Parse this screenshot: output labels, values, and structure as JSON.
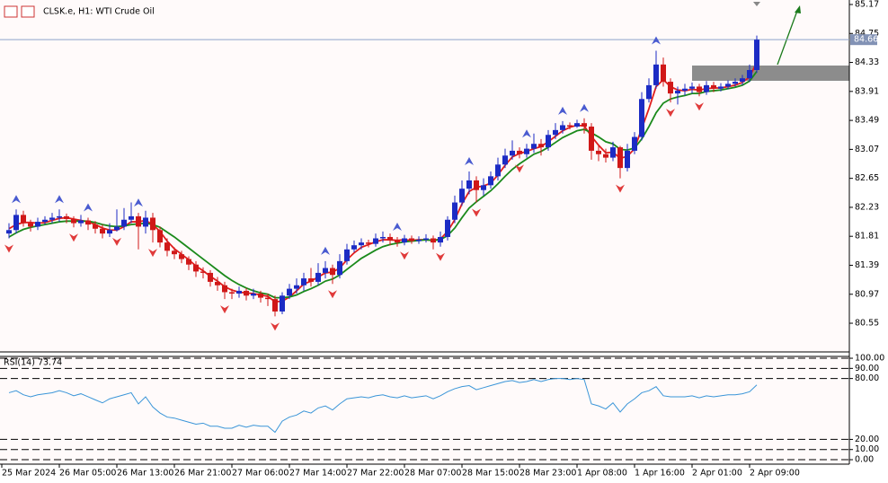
{
  "chart_data": [
    {
      "type": "candlestick",
      "title": "CLSK.e, H1:  WTI Crude Oil",
      "up_color": "#1c2bc4",
      "down_color": "#d01818",
      "open": [
        81.85,
        81.9,
        82.12,
        82.0,
        81.95,
        82.02,
        82.05,
        82.08,
        82.1,
        82.06,
        82.0,
        82.04,
        81.98,
        81.92,
        81.85,
        81.9,
        81.95,
        82.05,
        82.1,
        81.95,
        82.08,
        81.9,
        81.72,
        81.6,
        81.55,
        81.48,
        81.4,
        81.3,
        81.28,
        81.15,
        81.1,
        81.0,
        80.98,
        81.02,
        80.95,
        80.98,
        80.92,
        80.9,
        80.72,
        80.95,
        81.05,
        81.1,
        81.2,
        81.15,
        81.28,
        81.35,
        81.25,
        81.45,
        81.62,
        81.68,
        81.72,
        81.7,
        81.78,
        81.8,
        81.75,
        81.72,
        81.78,
        81.74,
        81.76,
        81.78,
        81.72,
        81.8,
        82.05,
        82.3,
        82.5,
        82.62,
        82.48,
        82.55,
        82.68,
        82.85,
        82.98,
        83.05,
        83.0,
        83.08,
        83.15,
        83.1,
        83.28,
        83.35,
        83.42,
        83.4,
        83.45,
        83.4,
        83.05,
        83.0,
        82.95,
        83.1,
        82.8,
        83.05,
        83.25,
        83.8,
        84.0,
        84.3,
        84.05,
        83.88,
        83.92,
        83.95,
        83.98,
        83.9,
        84.0,
        83.95,
        83.98,
        84.02,
        84.05,
        84.1,
        84.22
      ],
      "high": [
        82.0,
        82.2,
        82.18,
        82.05,
        82.08,
        82.1,
        82.15,
        82.2,
        82.14,
        82.1,
        82.12,
        82.08,
        82.03,
        81.98,
        82.0,
        82.2,
        82.22,
        82.3,
        82.15,
        82.18,
        82.15,
        81.95,
        81.78,
        81.65,
        81.6,
        81.52,
        81.45,
        81.36,
        81.32,
        81.22,
        81.15,
        81.05,
        81.08,
        81.06,
        81.05,
        81.02,
        80.98,
        80.95,
        81.0,
        81.12,
        81.2,
        81.28,
        81.35,
        81.42,
        81.45,
        81.4,
        81.55,
        81.7,
        81.75,
        81.78,
        81.76,
        81.85,
        81.88,
        81.85,
        81.8,
        81.83,
        81.82,
        81.81,
        81.84,
        81.82,
        81.88,
        82.1,
        82.4,
        82.62,
        82.75,
        82.68,
        82.65,
        82.75,
        82.95,
        83.08,
        83.2,
        83.1,
        83.15,
        83.3,
        83.22,
        83.35,
        83.45,
        83.48,
        83.46,
        83.5,
        83.52,
        83.45,
        83.12,
        83.08,
        83.18,
        83.12,
        83.15,
        83.32,
        83.9,
        84.1,
        84.5,
        84.4,
        84.1,
        83.98,
        84.02,
        84.04,
        84.02,
        84.06,
        84.05,
        84.03,
        84.07,
        84.1,
        84.15,
        84.3,
        84.72
      ],
      "low": [
        81.78,
        81.85,
        81.95,
        81.88,
        81.9,
        81.98,
        82.0,
        82.02,
        82.0,
        81.94,
        81.95,
        81.9,
        81.85,
        81.78,
        81.8,
        81.88,
        81.9,
        82.0,
        81.62,
        81.85,
        81.72,
        81.65,
        81.52,
        81.48,
        81.42,
        81.32,
        81.22,
        81.2,
        81.08,
        81.02,
        80.9,
        80.9,
        80.92,
        80.88,
        80.9,
        80.85,
        80.8,
        80.65,
        80.68,
        80.9,
        80.98,
        81.02,
        81.08,
        81.1,
        81.2,
        81.12,
        81.2,
        81.4,
        81.58,
        81.62,
        81.65,
        81.66,
        81.72,
        81.68,
        81.66,
        81.68,
        81.7,
        81.7,
        81.72,
        81.62,
        81.66,
        81.75,
        82.0,
        82.25,
        82.42,
        82.3,
        82.4,
        82.5,
        82.62,
        82.8,
        82.92,
        82.94,
        82.95,
        83.02,
        82.98,
        83.05,
        83.22,
        83.3,
        83.36,
        83.38,
        83.3,
        82.92,
        82.9,
        82.88,
        82.9,
        82.65,
        82.75,
        83.0,
        83.2,
        83.75,
        83.95,
        83.98,
        83.75,
        83.72,
        83.85,
        83.88,
        83.84,
        83.86,
        83.9,
        83.91,
        83.94,
        83.98,
        84.0,
        84.05,
        84.18
      ],
      "close": [
        81.9,
        82.12,
        82.0,
        81.95,
        82.02,
        82.05,
        82.08,
        82.1,
        82.06,
        82.0,
        82.04,
        81.98,
        81.92,
        81.85,
        81.9,
        81.95,
        82.05,
        82.1,
        81.95,
        82.08,
        81.9,
        81.72,
        81.6,
        81.55,
        81.48,
        81.4,
        81.3,
        81.28,
        81.15,
        81.1,
        81.0,
        80.98,
        81.02,
        80.95,
        80.98,
        80.92,
        80.9,
        80.72,
        80.95,
        81.05,
        81.1,
        81.2,
        81.15,
        81.28,
        81.35,
        81.25,
        81.45,
        81.62,
        81.68,
        81.72,
        81.7,
        81.78,
        81.8,
        81.75,
        81.72,
        81.78,
        81.74,
        81.76,
        81.78,
        81.72,
        81.8,
        82.05,
        82.3,
        82.5,
        82.62,
        82.48,
        82.55,
        82.68,
        82.85,
        82.98,
        83.05,
        83.0,
        83.08,
        83.15,
        83.1,
        83.28,
        83.35,
        83.42,
        83.4,
        83.45,
        83.4,
        83.05,
        83.0,
        82.95,
        83.1,
        82.8,
        83.05,
        83.25,
        83.8,
        84.0,
        84.3,
        84.05,
        83.88,
        83.92,
        83.95,
        83.98,
        83.9,
        84.0,
        83.95,
        83.98,
        84.02,
        84.05,
        84.1,
        84.22,
        84.66
      ],
      "moving_averages": [
        {
          "color": "#e01e1e",
          "values": [
            81.92,
            81.98,
            82.01,
            82.01,
            82.0,
            82.01,
            82.04,
            82.07,
            82.08,
            82.06,
            82.04,
            82.02,
            81.98,
            81.93,
            81.9,
            81.9,
            81.95,
            82.02,
            82.02,
            82.04,
            81.98,
            81.88,
            81.74,
            81.63,
            81.55,
            81.47,
            81.38,
            81.31,
            81.23,
            81.16,
            81.08,
            81.03,
            81.0,
            80.99,
            80.98,
            80.96,
            80.94,
            80.86,
            80.87,
            80.93,
            81.02,
            81.12,
            81.16,
            81.22,
            81.28,
            81.29,
            81.35,
            81.47,
            81.57,
            81.65,
            81.69,
            81.73,
            81.76,
            81.76,
            81.75,
            81.76,
            81.75,
            81.76,
            81.76,
            81.75,
            81.77,
            81.88,
            82.05,
            82.28,
            82.46,
            82.52,
            82.54,
            82.58,
            82.7,
            82.84,
            82.96,
            83.01,
            83.04,
            83.08,
            83.11,
            83.18,
            83.26,
            83.34,
            83.39,
            83.42,
            83.41,
            83.26,
            83.13,
            83.02,
            83.03,
            82.94,
            82.97,
            83.08,
            83.37,
            83.66,
            83.98,
            84.08,
            83.98,
            83.93,
            83.92,
            83.94,
            83.93,
            83.95,
            83.96,
            83.96,
            83.98,
            84.0,
            84.04,
            84.12,
            84.33
          ]
        },
        {
          "color": "#1b8a1b",
          "values": [
            81.8,
            81.86,
            81.91,
            81.94,
            81.96,
            81.98,
            82.0,
            82.02,
            82.03,
            82.03,
            82.03,
            82.03,
            82.01,
            81.98,
            81.96,
            81.95,
            81.96,
            81.98,
            81.99,
            82.0,
            81.98,
            81.94,
            81.87,
            81.8,
            81.72,
            81.64,
            81.56,
            81.48,
            81.4,
            81.32,
            81.24,
            81.17,
            81.11,
            81.06,
            81.02,
            80.99,
            80.97,
            80.92,
            80.92,
            80.93,
            80.96,
            81.01,
            81.05,
            81.1,
            81.16,
            81.19,
            81.25,
            81.33,
            81.41,
            81.49,
            81.55,
            81.61,
            81.66,
            81.69,
            81.71,
            81.73,
            81.74,
            81.75,
            81.76,
            81.75,
            81.76,
            81.82,
            81.93,
            82.08,
            82.22,
            82.31,
            82.39,
            82.47,
            82.57,
            82.68,
            82.78,
            82.86,
            82.93,
            83.0,
            83.04,
            83.1,
            83.17,
            83.24,
            83.29,
            83.34,
            83.36,
            83.31,
            83.25,
            83.18,
            83.15,
            83.07,
            83.06,
            83.09,
            83.22,
            83.4,
            83.6,
            83.74,
            83.8,
            83.83,
            83.85,
            83.88,
            83.88,
            83.91,
            83.92,
            83.93,
            83.95,
            83.97,
            84.0,
            84.06,
            84.2
          ]
        }
      ],
      "fractals_up": [
        1,
        7,
        11,
        18,
        44,
        54,
        64,
        72,
        77,
        80,
        90
      ],
      "fractals_down": [
        0,
        9,
        15,
        20,
        30,
        37,
        45,
        55,
        60,
        65,
        71,
        85,
        92,
        96
      ],
      "last_price": 84.66,
      "ylim": [
        80.134,
        85.235
      ],
      "yticks": [
        85.17,
        84.75,
        84.33,
        83.91,
        83.49,
        83.07,
        82.65,
        82.23,
        81.81,
        81.39,
        80.97,
        80.55
      ],
      "xticks": [
        {
          "value": -1,
          "label": "25 Mar 2024"
        },
        {
          "value": 7,
          "label": "26 Mar 05:00"
        },
        {
          "value": 15,
          "label": "26 Mar 13:00"
        },
        {
          "value": 23,
          "label": "26 Mar 21:00"
        },
        {
          "value": 31,
          "label": "27 Mar 06:00"
        },
        {
          "value": 39,
          "label": "27 Mar 14:00"
        },
        {
          "value": 47,
          "label": "27 Mar 22:00"
        },
        {
          "value": 55,
          "label": "28 Mar 07:00"
        },
        {
          "value": 63,
          "label": "28 Mar 15:00"
        },
        {
          "value": 71,
          "label": "28 Mar 23:00"
        },
        {
          "value": 79,
          "label": "1 Apr 08:00"
        },
        {
          "value": 87,
          "label": "1 Apr 16:00"
        },
        {
          "value": 95,
          "label": "2 Apr 01:00"
        },
        {
          "value": 103,
          "label": "2 Apr 09:00"
        }
      ]
    },
    {
      "type": "line",
      "title": "RSI(14) 73.74",
      "color": "#3a95d8",
      "values": [
        66,
        68,
        64,
        62,
        64,
        65,
        66,
        68,
        66,
        63,
        65,
        62,
        59,
        56,
        60,
        62,
        64,
        66,
        55,
        62,
        52,
        46,
        42,
        41,
        39,
        37,
        35,
        36,
        33,
        33,
        31,
        31,
        34,
        32,
        34,
        33,
        33,
        27,
        38,
        42,
        44,
        48,
        46,
        51,
        53,
        49,
        55,
        60,
        61,
        62,
        61,
        63,
        64,
        62,
        61,
        63,
        61,
        62,
        63,
        60,
        63,
        67,
        70,
        72,
        73,
        69,
        71,
        73,
        75,
        77,
        78,
        76,
        77,
        79,
        77,
        79,
        80,
        80,
        79,
        80,
        79,
        55,
        53,
        50,
        56,
        47,
        55,
        60,
        66,
        68,
        72,
        63,
        62,
        62,
        62,
        63,
        61,
        63,
        62,
        63,
        64,
        64,
        65,
        67,
        73.74
      ],
      "ylim": [
        -4.4,
        101.8
      ],
      "yticks": [
        {
          "value": 100,
          "label": "100.00"
        },
        {
          "value": 90,
          "label": "90.00"
        },
        {
          "value": 80,
          "label": "80.00"
        },
        {
          "value": 20,
          "label": "20.00"
        },
        {
          "value": 10,
          "label": "10.00"
        },
        {
          "value": 0,
          "label": "0.00"
        }
      ],
      "dashed_levels": true
    }
  ]
}
